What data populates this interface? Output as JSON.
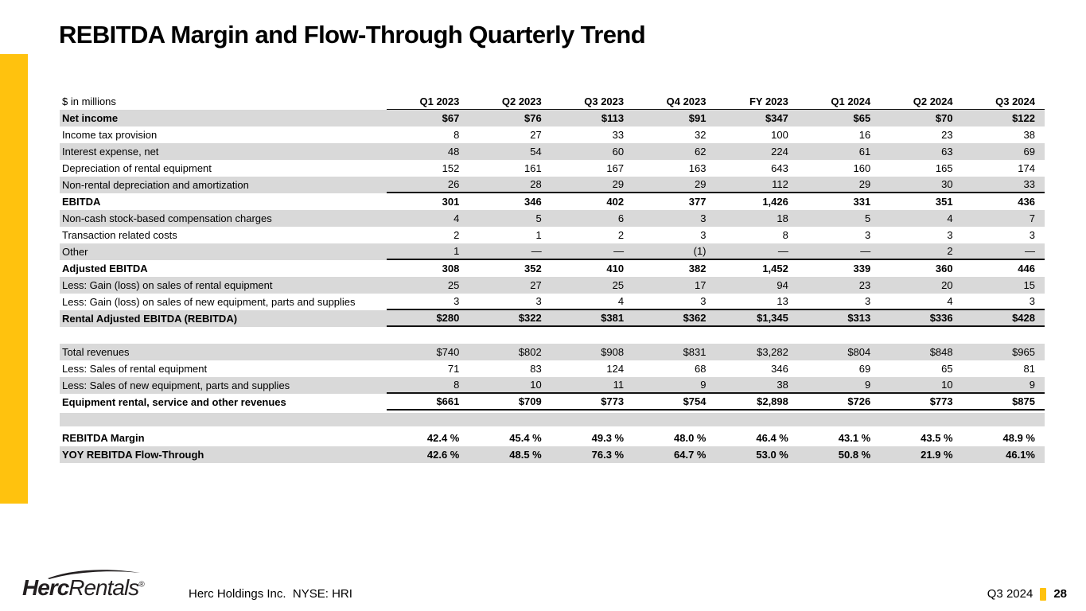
{
  "slide": {
    "title": "REBITDA Margin and Flow-Through Quarterly Trend",
    "accent_color": "#FFC20E"
  },
  "table": {
    "unit_label": "$ in millions",
    "columns": [
      "Q1 2023",
      "Q2 2023",
      "Q3 2023",
      "Q4 2023",
      "FY 2023",
      "Q1 2024",
      "Q2 2024",
      "Q3 2024"
    ],
    "rows": [
      {
        "label": "Net income",
        "values": [
          "$67",
          "$76",
          "$113",
          "$91",
          "$347",
          "$65",
          "$70",
          "$122"
        ],
        "bold": true,
        "shaded": true
      },
      {
        "label": "Income tax provision",
        "values": [
          "8",
          "27",
          "33",
          "32",
          "100",
          "16",
          "23",
          "38"
        ]
      },
      {
        "label": "Interest expense, net",
        "values": [
          "48",
          "54",
          "60",
          "62",
          "224",
          "61",
          "63",
          "69"
        ],
        "shaded": true
      },
      {
        "label": "Depreciation of rental equipment",
        "values": [
          "152",
          "161",
          "167",
          "163",
          "643",
          "160",
          "165",
          "174"
        ]
      },
      {
        "label": "Non-rental depreciation and amortization",
        "values": [
          "26",
          "28",
          "29",
          "29",
          "112",
          "29",
          "30",
          "33"
        ],
        "shaded": true,
        "line_below": true
      },
      {
        "label": "EBITDA",
        "values": [
          "301",
          "346",
          "402",
          "377",
          "1,426",
          "331",
          "351",
          "436"
        ],
        "bold": true
      },
      {
        "label": "Non-cash stock-based compensation charges",
        "values": [
          "4",
          "5",
          "6",
          "3",
          "18",
          "5",
          "4",
          "7"
        ],
        "shaded": true
      },
      {
        "label": "Transaction related costs",
        "values": [
          "2",
          "1",
          "2",
          "3",
          "8",
          "3",
          "3",
          "3"
        ]
      },
      {
        "label": "Other",
        "values": [
          "1",
          "—",
          "—",
          "(1)",
          "—",
          "—",
          "2",
          "—"
        ],
        "shaded": true,
        "line_below": true
      },
      {
        "label": "Adjusted EBITDA",
        "values": [
          "308",
          "352",
          "410",
          "382",
          "1,452",
          "339",
          "360",
          "446"
        ],
        "bold": true
      },
      {
        "label": "Less: Gain (loss) on sales of rental equipment",
        "values": [
          "25",
          "27",
          "25",
          "17",
          "94",
          "23",
          "20",
          "15"
        ],
        "shaded": true
      },
      {
        "label": "Less: Gain (loss) on sales of new equipment, parts and supplies",
        "values": [
          "3",
          "3",
          "4",
          "3",
          "13",
          "3",
          "4",
          "3"
        ],
        "line_below": true
      },
      {
        "label": "Rental Adjusted EBITDA (REBITDA)",
        "values": [
          "$280",
          "$322",
          "$381",
          "$362",
          "$1,345",
          "$313",
          "$336",
          "$428"
        ],
        "bold": true,
        "shaded": true,
        "line_below": true
      },
      {
        "type": "spacer",
        "height": 21
      },
      {
        "label": "Total revenues",
        "values": [
          "$740",
          "$802",
          "$908",
          "$831",
          "$3,282",
          "$804",
          "$848",
          "$965"
        ],
        "shaded": true
      },
      {
        "label": "Less: Sales of rental equipment",
        "values": [
          "71",
          "83",
          "124",
          "68",
          "346",
          "69",
          "65",
          "81"
        ]
      },
      {
        "label": "Less: Sales of new equipment, parts and supplies",
        "values": [
          "8",
          "10",
          "11",
          "9",
          "38",
          "9",
          "10",
          "9"
        ],
        "shaded": true,
        "line_below": true
      },
      {
        "label": "Equipment rental, service and other revenues",
        "values": [
          "$661",
          "$709",
          "$773",
          "$754",
          "$2,898",
          "$726",
          "$773",
          "$875"
        ],
        "bold": true,
        "line_below": true
      },
      {
        "type": "spacer",
        "height": 3
      },
      {
        "type": "spacer",
        "height": 17,
        "shaded": true
      },
      {
        "type": "spacer",
        "height": 4
      },
      {
        "label": "REBITDA Margin",
        "values": [
          "42.4 %",
          "45.4 %",
          "49.3 %",
          "48.0 %",
          "46.4 %",
          "43.1 %",
          "43.5 %",
          "48.9 %"
        ],
        "bold": true
      },
      {
        "label": "YOY REBITDA Flow-Through",
        "values": [
          "42.6 %",
          "48.5 %",
          "76.3 %",
          "64.7 %",
          "53.0 %",
          "50.8 %",
          "21.9 %",
          "46.1%"
        ],
        "bold": true,
        "shaded": true
      }
    ]
  },
  "footer": {
    "logo_bold": "Herc",
    "logo_regular": "Rentals",
    "logo_mark": "®",
    "company_line": "Herc Holdings Inc.  NYSE: HRI",
    "period": "Q3 2024",
    "page_number": "28"
  }
}
